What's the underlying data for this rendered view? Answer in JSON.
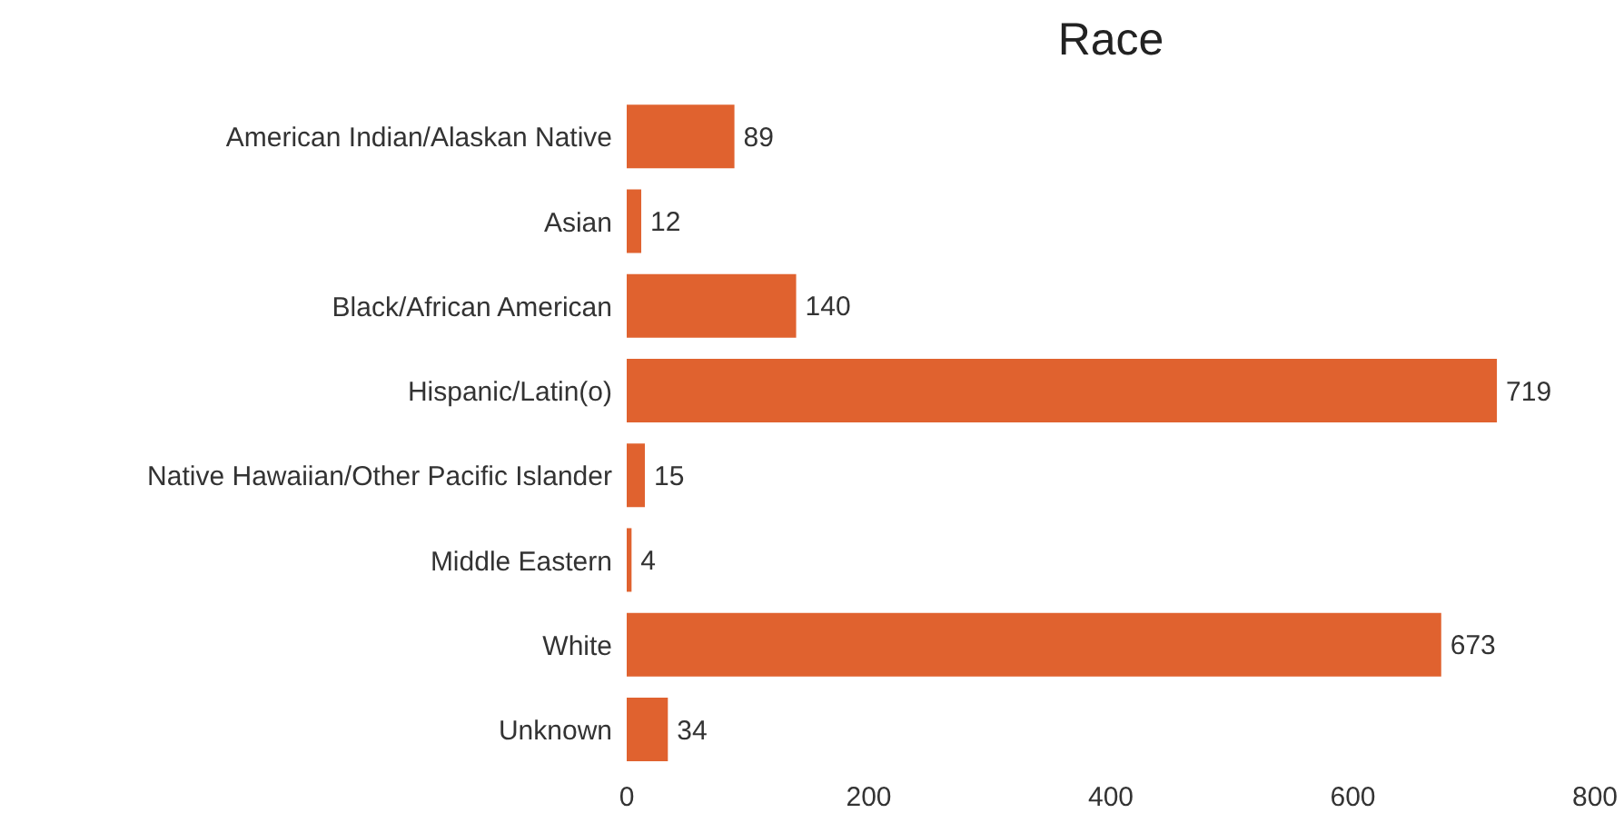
{
  "chart_data": {
    "type": "bar",
    "orientation": "horizontal",
    "title": "Race",
    "categories": [
      "American Indian/Alaskan Native",
      "Asian",
      "Black/African American",
      "Hispanic/Latin(o)",
      "Native Hawaiian/Other Pacific Islander",
      "Middle Eastern",
      "White",
      "Unknown"
    ],
    "values": [
      89,
      12,
      140,
      719,
      15,
      4,
      673,
      34
    ],
    "color": "#e0622f",
    "xlim": [
      0,
      800
    ],
    "xticks": [
      0,
      200,
      400,
      600,
      800
    ],
    "data_labels": true
  }
}
